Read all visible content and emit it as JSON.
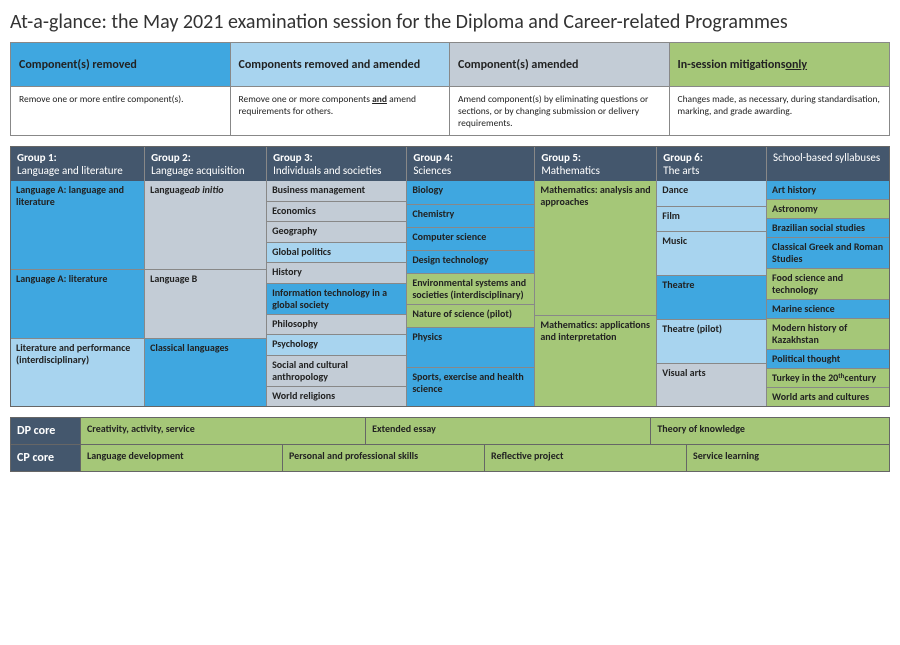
{
  "title": "At-a-glance: the May 2021 examination session for the Diploma and Career-related Programmes",
  "colors": {
    "removed": "#3fa7e0",
    "removed_amended": "#a8d4ef",
    "amended": "#c3ccd6",
    "mitigations": "#a5c778",
    "header_dark": "#44576d"
  },
  "legend": [
    {
      "title": "Component(s) removed",
      "desc": "Remove one or more entire component(s).",
      "color": "#3fa7e0"
    },
    {
      "title": "Components removed and amended",
      "desc": "Remove one or more components <b><u>and</u></b> amend requirements for others.",
      "color": "#a8d4ef"
    },
    {
      "title": "Component(s) amended",
      "desc": "Amend component(s) by eliminating questions or sections, or by changing submission or delivery requirements.",
      "color": "#c3ccd6"
    },
    {
      "title": "In-session mitigations <u>only</u>",
      "desc": "Changes made, as necessary, during standardisation, marking, and grade awarding.",
      "color": "#a5c778"
    }
  ],
  "groups": [
    {
      "num": "Group 1:",
      "name": "Language and literature"
    },
    {
      "num": "Group 2:",
      "name": "Language acquisition"
    },
    {
      "num": "Group 3:",
      "name": "Individuals and societies"
    },
    {
      "num": "Group 4:",
      "name": "Sciences"
    },
    {
      "num": "Group 5:",
      "name": "Mathematics"
    },
    {
      "num": "Group 6:",
      "name": "The arts"
    },
    {
      "num": "",
      "name": "School-based syllabuses"
    }
  ],
  "columns": [
    [
      {
        "label": "Language A: language and literature",
        "color": "#3fa7e0",
        "flex": 4
      },
      {
        "label": "Language A: literature",
        "color": "#3fa7e0",
        "flex": 3
      },
      {
        "label": "Literature and performance (interdisciplinary)",
        "color": "#a8d4ef",
        "flex": 3
      }
    ],
    [
      {
        "label": "Language <i>ab initio</i>",
        "color": "#c3ccd6",
        "flex": 4
      },
      {
        "label": "Language B",
        "color": "#c3ccd6",
        "flex": 3
      },
      {
        "label": "Classical languages",
        "color": "#3fa7e0",
        "flex": 3
      }
    ],
    [
      {
        "label": "Business management",
        "color": "#c3ccd6",
        "flex": 1
      },
      {
        "label": "Economics",
        "color": "#c3ccd6",
        "flex": 1
      },
      {
        "label": "Geography",
        "color": "#c3ccd6",
        "flex": 1
      },
      {
        "label": "Global politics",
        "color": "#a8d4ef",
        "flex": 1
      },
      {
        "label": "History",
        "color": "#c3ccd6",
        "flex": 1
      },
      {
        "label": "Information technology in a global society",
        "color": "#3fa7e0",
        "flex": 1
      },
      {
        "label": "Philosophy",
        "color": "#c3ccd6",
        "flex": 1
      },
      {
        "label": "Psychology",
        "color": "#a8d4ef",
        "flex": 1
      },
      {
        "label": "Social and cultural anthropology",
        "color": "#c3ccd6",
        "flex": 1
      },
      {
        "label": "World religions",
        "color": "#c3ccd6",
        "flex": 1
      }
    ],
    [
      {
        "label": "Biology",
        "color": "#3fa7e0",
        "flex": 1
      },
      {
        "label": "Chemistry",
        "color": "#3fa7e0",
        "flex": 1
      },
      {
        "label": "Computer science",
        "color": "#3fa7e0",
        "flex": 1
      },
      {
        "label": "Design technology",
        "color": "#3fa7e0",
        "flex": 1
      },
      {
        "label": "Environmental systems and societies (interdisciplinary)",
        "color": "#a5c778",
        "flex": 1
      },
      {
        "label": "Nature of science (pilot)",
        "color": "#a5c778",
        "flex": 1
      },
      {
        "label": "Physics",
        "color": "#3fa7e0",
        "flex": 2
      },
      {
        "label": "Sports, exercise and health science",
        "color": "#3fa7e0",
        "flex": 2
      }
    ],
    [
      {
        "label": "Mathematics: analysis and approaches",
        "color": "#a5c778",
        "flex": 6
      },
      {
        "label": "Mathematics: applications and interpretation",
        "color": "#a5c778",
        "flex": 4
      }
    ],
    [
      {
        "label": "Dance",
        "color": "#a8d4ef",
        "flex": 1
      },
      {
        "label": "Film",
        "color": "#a8d4ef",
        "flex": 1
      },
      {
        "label": "Music",
        "color": "#a8d4ef",
        "flex": 2
      },
      {
        "label": "Theatre",
        "color": "#3fa7e0",
        "flex": 2
      },
      {
        "label": "Theatre (pilot)",
        "color": "#a8d4ef",
        "flex": 2
      },
      {
        "label": "Visual arts",
        "color": "#c3ccd6",
        "flex": 2
      }
    ],
    [
      {
        "label": "Art history",
        "color": "#3fa7e0",
        "flex": 1
      },
      {
        "label": "Astronomy",
        "color": "#a5c778",
        "flex": 1
      },
      {
        "label": "Brazilian social studies",
        "color": "#3fa7e0",
        "flex": 1
      },
      {
        "label": "Classical Greek and Roman Studies",
        "color": "#3fa7e0",
        "flex": 1
      },
      {
        "label": "Food science and technology",
        "color": "#a5c778",
        "flex": 1
      },
      {
        "label": "Marine science",
        "color": "#3fa7e0",
        "flex": 1
      },
      {
        "label": "Modern history of Kazakhstan",
        "color": "#a5c778",
        "flex": 1
      },
      {
        "label": "Political thought",
        "color": "#3fa7e0",
        "flex": 1
      },
      {
        "label": "Turkey in the 20<sup>th</sup> century",
        "color": "#a5c778",
        "flex": 1
      },
      {
        "label": "World arts and cultures",
        "color": "#a5c778",
        "flex": 1
      }
    ]
  ],
  "core": [
    {
      "label": "DP core",
      "cols": [
        "70px",
        "1.2fr",
        "1.2fr",
        "1fr"
      ],
      "cells": [
        {
          "label": "Creativity, activity, service",
          "color": "#a5c778"
        },
        {
          "label": "Extended essay",
          "color": "#a5c778"
        },
        {
          "label": "Theory of knowledge",
          "color": "#a5c778"
        }
      ]
    },
    {
      "label": "CP core",
      "cols": [
        "70px",
        "1fr",
        "1fr",
        "1fr",
        "1fr"
      ],
      "cells": [
        {
          "label": "Language development",
          "color": "#a5c778"
        },
        {
          "label": "Personal and professional skills",
          "color": "#a5c778"
        },
        {
          "label": "Reflective project",
          "color": "#a5c778"
        },
        {
          "label": "Service learning",
          "color": "#a5c778"
        }
      ]
    }
  ]
}
